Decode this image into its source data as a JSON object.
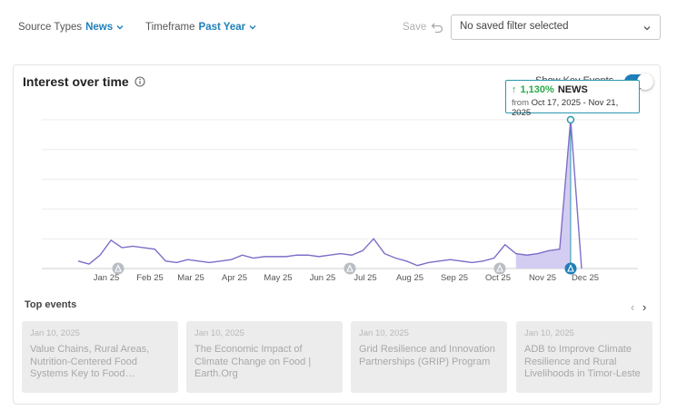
{
  "filters": {
    "source_types": {
      "label": "Source Types",
      "value": "News"
    },
    "timeframe": {
      "label": "Timeframe",
      "value": "Past Year"
    },
    "save_label": "Save",
    "saved_filter_placeholder": "No saved filter selected"
  },
  "card": {
    "title": "Interest over time",
    "key_events_label": "Show Key Events",
    "key_events_enabled": true
  },
  "tooltip": {
    "change": "1,130%",
    "category": "NEWS",
    "from_label": "from",
    "date_range": "Oct 17, 2025 - Nov 21, 2025"
  },
  "chart_data": {
    "type": "area",
    "xticks": [
      "Jan 25",
      "Feb 25",
      "Mar 25",
      "Apr 25",
      "May 25",
      "Jun 25",
      "Jul 25",
      "Aug 25",
      "Sep 25",
      "Oct 25",
      "Nov 25",
      "Dec 25"
    ],
    "series": [
      {
        "values": [
          5,
          3,
          9,
          19,
          14,
          15,
          14,
          13,
          5,
          4,
          6,
          5,
          4,
          5,
          6,
          9,
          7,
          8,
          8,
          8,
          9,
          9,
          8,
          9,
          10,
          9,
          12,
          20,
          10,
          7,
          5,
          2,
          4,
          5,
          6,
          5,
          4,
          5,
          7,
          16,
          10,
          9,
          10,
          12,
          13,
          100,
          0
        ],
        "color": "#7e6dc9"
      }
    ],
    "highlight_range": "Oct 17, 2025 - Nov 21, 2025",
    "ylim": [
      0,
      100
    ],
    "grid": true,
    "key_event_marker_count": 5
  },
  "top_events": {
    "title": "Top events",
    "items": [
      {
        "date": "Jan 10, 2025",
        "title": "Value Chains, Rural Areas, Nutrition-Centered Food Systems Key to Food Security…"
      },
      {
        "date": "Jan 10, 2025",
        "title": "The Economic Impact of Climate Change on Food | Earth.Org"
      },
      {
        "date": "Jan 10, 2025",
        "title": "Grid Resilience and Innovation Partnerships (GRIP) Program"
      },
      {
        "date": "Jan 10, 2025",
        "title": "ADB to Improve Climate Resilience and Rural Livelihoods in Timor-Leste"
      }
    ]
  },
  "colors": {
    "accent": "#1f7fb8",
    "line": "#7e6dc9",
    "tooltip_border": "#2a98ad",
    "increase": "#2aa84a"
  }
}
